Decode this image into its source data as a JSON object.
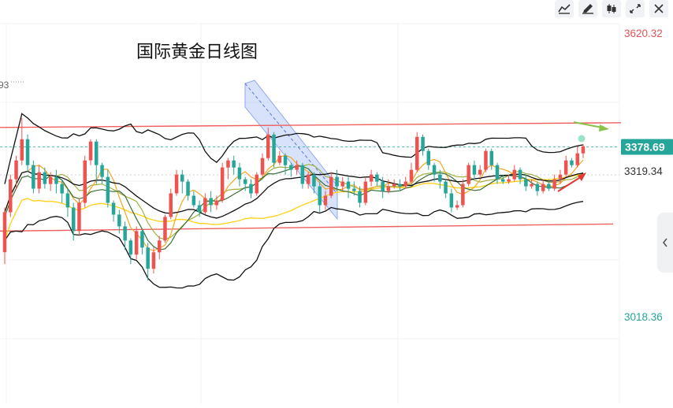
{
  "chart_data": {
    "type": "candlestick",
    "title": "国际黄金日线图",
    "price_labels": {
      "top": "3620.32",
      "current": "3378.69",
      "mid": "3319.34",
      "bottom": "3018.36",
      "left_cut": "93"
    },
    "ylim": [
      2900,
      3680
    ],
    "colors": {
      "up": "#ef5350",
      "down": "#26a69a",
      "current_bg": "#26a69a",
      "upper_label": "#e05555",
      "lower_label": "#26a69a",
      "channel_line": "#f06060",
      "boll": "#111111",
      "ma_orange": "#f5a623",
      "ma_yellow": "#ffd21f",
      "ma_olive": "#a0b040",
      "ma_darkgreen": "#3a6e3a",
      "arrow_up": "#e53935",
      "arrow_right": "#8bc34a",
      "highlight": "#a9bff5"
    },
    "candles": [
      [
        3155,
        3240,
        3130,
        3250
      ],
      [
        3240,
        3310,
        3230,
        3320
      ],
      [
        3310,
        3350,
        3290,
        3360
      ],
      [
        3350,
        3395,
        3340,
        3440
      ],
      [
        3395,
        3340,
        3325,
        3405
      ],
      [
        3340,
        3290,
        3280,
        3350
      ],
      [
        3290,
        3325,
        3280,
        3340
      ],
      [
        3325,
        3300,
        3290,
        3335
      ],
      [
        3300,
        3315,
        3285,
        3325
      ],
      [
        3315,
        3300,
        3280,
        3330
      ],
      [
        3300,
        3280,
        3260,
        3310
      ],
      [
        3280,
        3250,
        3230,
        3290
      ],
      [
        3250,
        3200,
        3180,
        3260
      ],
      [
        3200,
        3260,
        3190,
        3270
      ],
      [
        3260,
        3350,
        3250,
        3360
      ],
      [
        3350,
        3390,
        3340,
        3395
      ],
      [
        3390,
        3340,
        3300,
        3395
      ],
      [
        3340,
        3315,
        3300,
        3345
      ],
      [
        3315,
        3260,
        3250,
        3330
      ],
      [
        3260,
        3235,
        3220,
        3265
      ],
      [
        3235,
        3210,
        3195,
        3245
      ],
      [
        3210,
        3180,
        3160,
        3220
      ],
      [
        3180,
        3150,
        3130,
        3185
      ],
      [
        3150,
        3200,
        3140,
        3210
      ],
      [
        3200,
        3165,
        3150,
        3205
      ],
      [
        3165,
        3120,
        3095,
        3175
      ],
      [
        3120,
        3155,
        3110,
        3165
      ],
      [
        3155,
        3180,
        3140,
        3190
      ],
      [
        3180,
        3230,
        3175,
        3235
      ],
      [
        3230,
        3280,
        3225,
        3290
      ],
      [
        3280,
        3320,
        3275,
        3330
      ],
      [
        3320,
        3305,
        3280,
        3330
      ],
      [
        3305,
        3275,
        3265,
        3310
      ],
      [
        3275,
        3255,
        3250,
        3285
      ],
      [
        3255,
        3240,
        3230,
        3265
      ],
      [
        3240,
        3270,
        3235,
        3280
      ],
      [
        3270,
        3255,
        3240,
        3285
      ],
      [
        3255,
        3265,
        3245,
        3275
      ],
      [
        3265,
        3335,
        3260,
        3345
      ],
      [
        3335,
        3350,
        3310,
        3355
      ],
      [
        3350,
        3335,
        3320,
        3360
      ],
      [
        3335,
        3310,
        3295,
        3345
      ],
      [
        3310,
        3300,
        3285,
        3315
      ],
      [
        3300,
        3280,
        3270,
        3310
      ],
      [
        3280,
        3320,
        3275,
        3325
      ],
      [
        3320,
        3355,
        3315,
        3365
      ],
      [
        3355,
        3405,
        3350,
        3420
      ],
      [
        3405,
        3345,
        3335,
        3410
      ],
      [
        3345,
        3360,
        3340,
        3370
      ],
      [
        3360,
        3340,
        3320,
        3365
      ],
      [
        3340,
        3330,
        3315,
        3345
      ],
      [
        3330,
        3340,
        3320,
        3350
      ],
      [
        3340,
        3300,
        3290,
        3345
      ],
      [
        3300,
        3320,
        3290,
        3325
      ],
      [
        3320,
        3295,
        3280,
        3325
      ],
      [
        3295,
        3255,
        3240,
        3305
      ],
      [
        3255,
        3275,
        3245,
        3285
      ],
      [
        3275,
        3315,
        3270,
        3325
      ],
      [
        3315,
        3295,
        3285,
        3330
      ],
      [
        3295,
        3305,
        3285,
        3315
      ],
      [
        3305,
        3290,
        3270,
        3315
      ],
      [
        3290,
        3285,
        3275,
        3305
      ],
      [
        3285,
        3260,
        3250,
        3295
      ],
      [
        3260,
        3305,
        3255,
        3315
      ],
      [
        3305,
        3320,
        3295,
        3330
      ],
      [
        3320,
        3305,
        3295,
        3325
      ],
      [
        3305,
        3285,
        3270,
        3315
      ],
      [
        3285,
        3295,
        3280,
        3310
      ],
      [
        3295,
        3300,
        3290,
        3310
      ],
      [
        3300,
        3295,
        3285,
        3310
      ],
      [
        3295,
        3305,
        3290,
        3315
      ],
      [
        3305,
        3330,
        3300,
        3345
      ],
      [
        3330,
        3400,
        3325,
        3410
      ],
      [
        3400,
        3370,
        3360,
        3405
      ],
      [
        3370,
        3340,
        3330,
        3375
      ],
      [
        3340,
        3320,
        3305,
        3345
      ],
      [
        3320,
        3305,
        3290,
        3330
      ],
      [
        3305,
        3280,
        3270,
        3310
      ],
      [
        3280,
        3250,
        3240,
        3290
      ],
      [
        3250,
        3255,
        3245,
        3265
      ],
      [
        3255,
        3300,
        3250,
        3310
      ],
      [
        3300,
        3340,
        3295,
        3345
      ],
      [
        3340,
        3320,
        3310,
        3350
      ],
      [
        3320,
        3330,
        3315,
        3340
      ],
      [
        3330,
        3370,
        3325,
        3375
      ],
      [
        3370,
        3340,
        3330,
        3375
      ],
      [
        3340,
        3310,
        3300,
        3345
      ],
      [
        3310,
        3305,
        3300,
        3320
      ],
      [
        3305,
        3310,
        3300,
        3320
      ],
      [
        3310,
        3330,
        3305,
        3340
      ],
      [
        3330,
        3310,
        3300,
        3335
      ],
      [
        3310,
        3295,
        3285,
        3320
      ],
      [
        3295,
        3300,
        3290,
        3310
      ],
      [
        3300,
        3285,
        3275,
        3305
      ],
      [
        3285,
        3300,
        3280,
        3310
      ],
      [
        3300,
        3290,
        3285,
        3310
      ],
      [
        3290,
        3310,
        3285,
        3320
      ],
      [
        3310,
        3320,
        3300,
        3330
      ],
      [
        3320,
        3350,
        3315,
        3360
      ],
      [
        3350,
        3340,
        3335,
        3355
      ],
      [
        3340,
        3365,
        3335,
        3380
      ],
      [
        3365,
        3380,
        3355,
        3385
      ]
    ],
    "horizontal_refs": [
      3378.69,
      3319.34
    ]
  },
  "toolbar": {
    "btn1": "indicator-icon",
    "btn2": "draw-icon",
    "btn3": "candle-type-icon",
    "btn4": "fullscreen-icon",
    "btn5": "close-icon"
  }
}
